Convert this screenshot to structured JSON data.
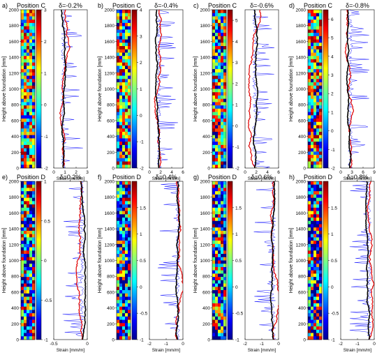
{
  "chart_data": {
    "type": "line",
    "panels": [
      {
        "letter": "a)",
        "position": "Position C",
        "drift": "δ=-0.2%",
        "cbar_ticks": [
          "3",
          "2",
          "1",
          "0",
          "-1",
          "-2"
        ],
        "cbar_range": [
          -2,
          3
        ],
        "x_ticks": [
          "0",
          "1",
          "2",
          "3"
        ],
        "xlim": [
          0,
          3
        ],
        "ylim": [
          0,
          2000
        ]
      },
      {
        "letter": "b)",
        "position": "Position C",
        "drift": "δ=-0.4%",
        "cbar_ticks": [
          "4",
          "3",
          "2",
          "1",
          "0",
          "-1",
          "-2"
        ],
        "cbar_range": [
          -2,
          4
        ],
        "x_ticks": [
          "0",
          "2",
          "4",
          "6"
        ],
        "xlim": [
          0,
          6
        ],
        "ylim": [
          0,
          2000
        ]
      },
      {
        "letter": "c)",
        "position": "Position C",
        "drift": "δ=-0.6%",
        "cbar_ticks": [
          "5",
          "4",
          "3",
          "2",
          "1",
          "0",
          "-1",
          "-2"
        ],
        "cbar_range": [
          -2,
          5.5
        ],
        "x_ticks": [
          "0",
          "2",
          "4",
          "6"
        ],
        "xlim": [
          0,
          6
        ],
        "ylim": [
          0,
          2000
        ]
      },
      {
        "letter": "d)",
        "position": "Position C",
        "drift": "δ=-0.8%",
        "cbar_ticks": [
          "6",
          "5",
          "4",
          "3",
          "2",
          "1",
          "0",
          "-1",
          "-2"
        ],
        "cbar_range": [
          -2,
          6.5
        ],
        "x_ticks": [
          "0",
          "3",
          "6",
          "9"
        ],
        "xlim": [
          0,
          9
        ],
        "ylim": [
          0,
          2000
        ]
      },
      {
        "letter": "e)",
        "position": "Position D",
        "drift": "δ=0.2%",
        "cbar_ticks": [
          "1",
          "0.5",
          "0",
          "-0.5",
          "-1"
        ],
        "cbar_range": [
          -1,
          1
        ],
        "x_ticks": [
          "-0.5",
          "0"
        ],
        "xlim": [
          -0.5,
          0
        ],
        "ylim": [
          0,
          2000
        ]
      },
      {
        "letter": "f)",
        "position": "Position D",
        "drift": "δ=0.4%",
        "cbar_ticks": [
          "1.5",
          "1",
          "0.5",
          "0",
          "-0.5",
          "-1"
        ],
        "cbar_range": [
          -1,
          2
        ],
        "x_ticks": [
          "-2",
          "-1",
          "0"
        ],
        "xlim": [
          -2,
          0
        ],
        "ylim": [
          0,
          2000
        ]
      },
      {
        "letter": "g)",
        "position": "Position D",
        "drift": "δ=0.6%",
        "cbar_ticks": [
          "1.5",
          "1",
          "0.5",
          "0",
          "-0.5",
          "-1"
        ],
        "cbar_range": [
          -1,
          2
        ],
        "x_ticks": [
          "-2",
          "-1",
          "0"
        ],
        "xlim": [
          -2,
          0
        ],
        "ylim": [
          0,
          2000
        ]
      },
      {
        "letter": "h)",
        "position": "Position D",
        "drift": "δ=0.8%",
        "cbar_ticks": [
          "1.5",
          "1",
          "0.5",
          "0",
          "-0.5",
          "-1"
        ],
        "cbar_range": [
          -1,
          2
        ],
        "x_ticks": [
          "-2",
          "-1",
          "0"
        ],
        "xlim": [
          -2,
          0
        ],
        "ylim": [
          0,
          2000
        ]
      }
    ],
    "y_ticks": [
      "2000",
      "1800",
      "1600",
      "1400",
      "1200",
      "1000",
      "800",
      "600",
      "400",
      "200",
      "0"
    ],
    "ylabel": "Height above foundation [mm]",
    "xlabel": "Strain [mm/m]",
    "series_colors": {
      "raw": "#1a1aff",
      "smoothed": "#e00000",
      "reference": "#000000"
    },
    "grid": false
  }
}
